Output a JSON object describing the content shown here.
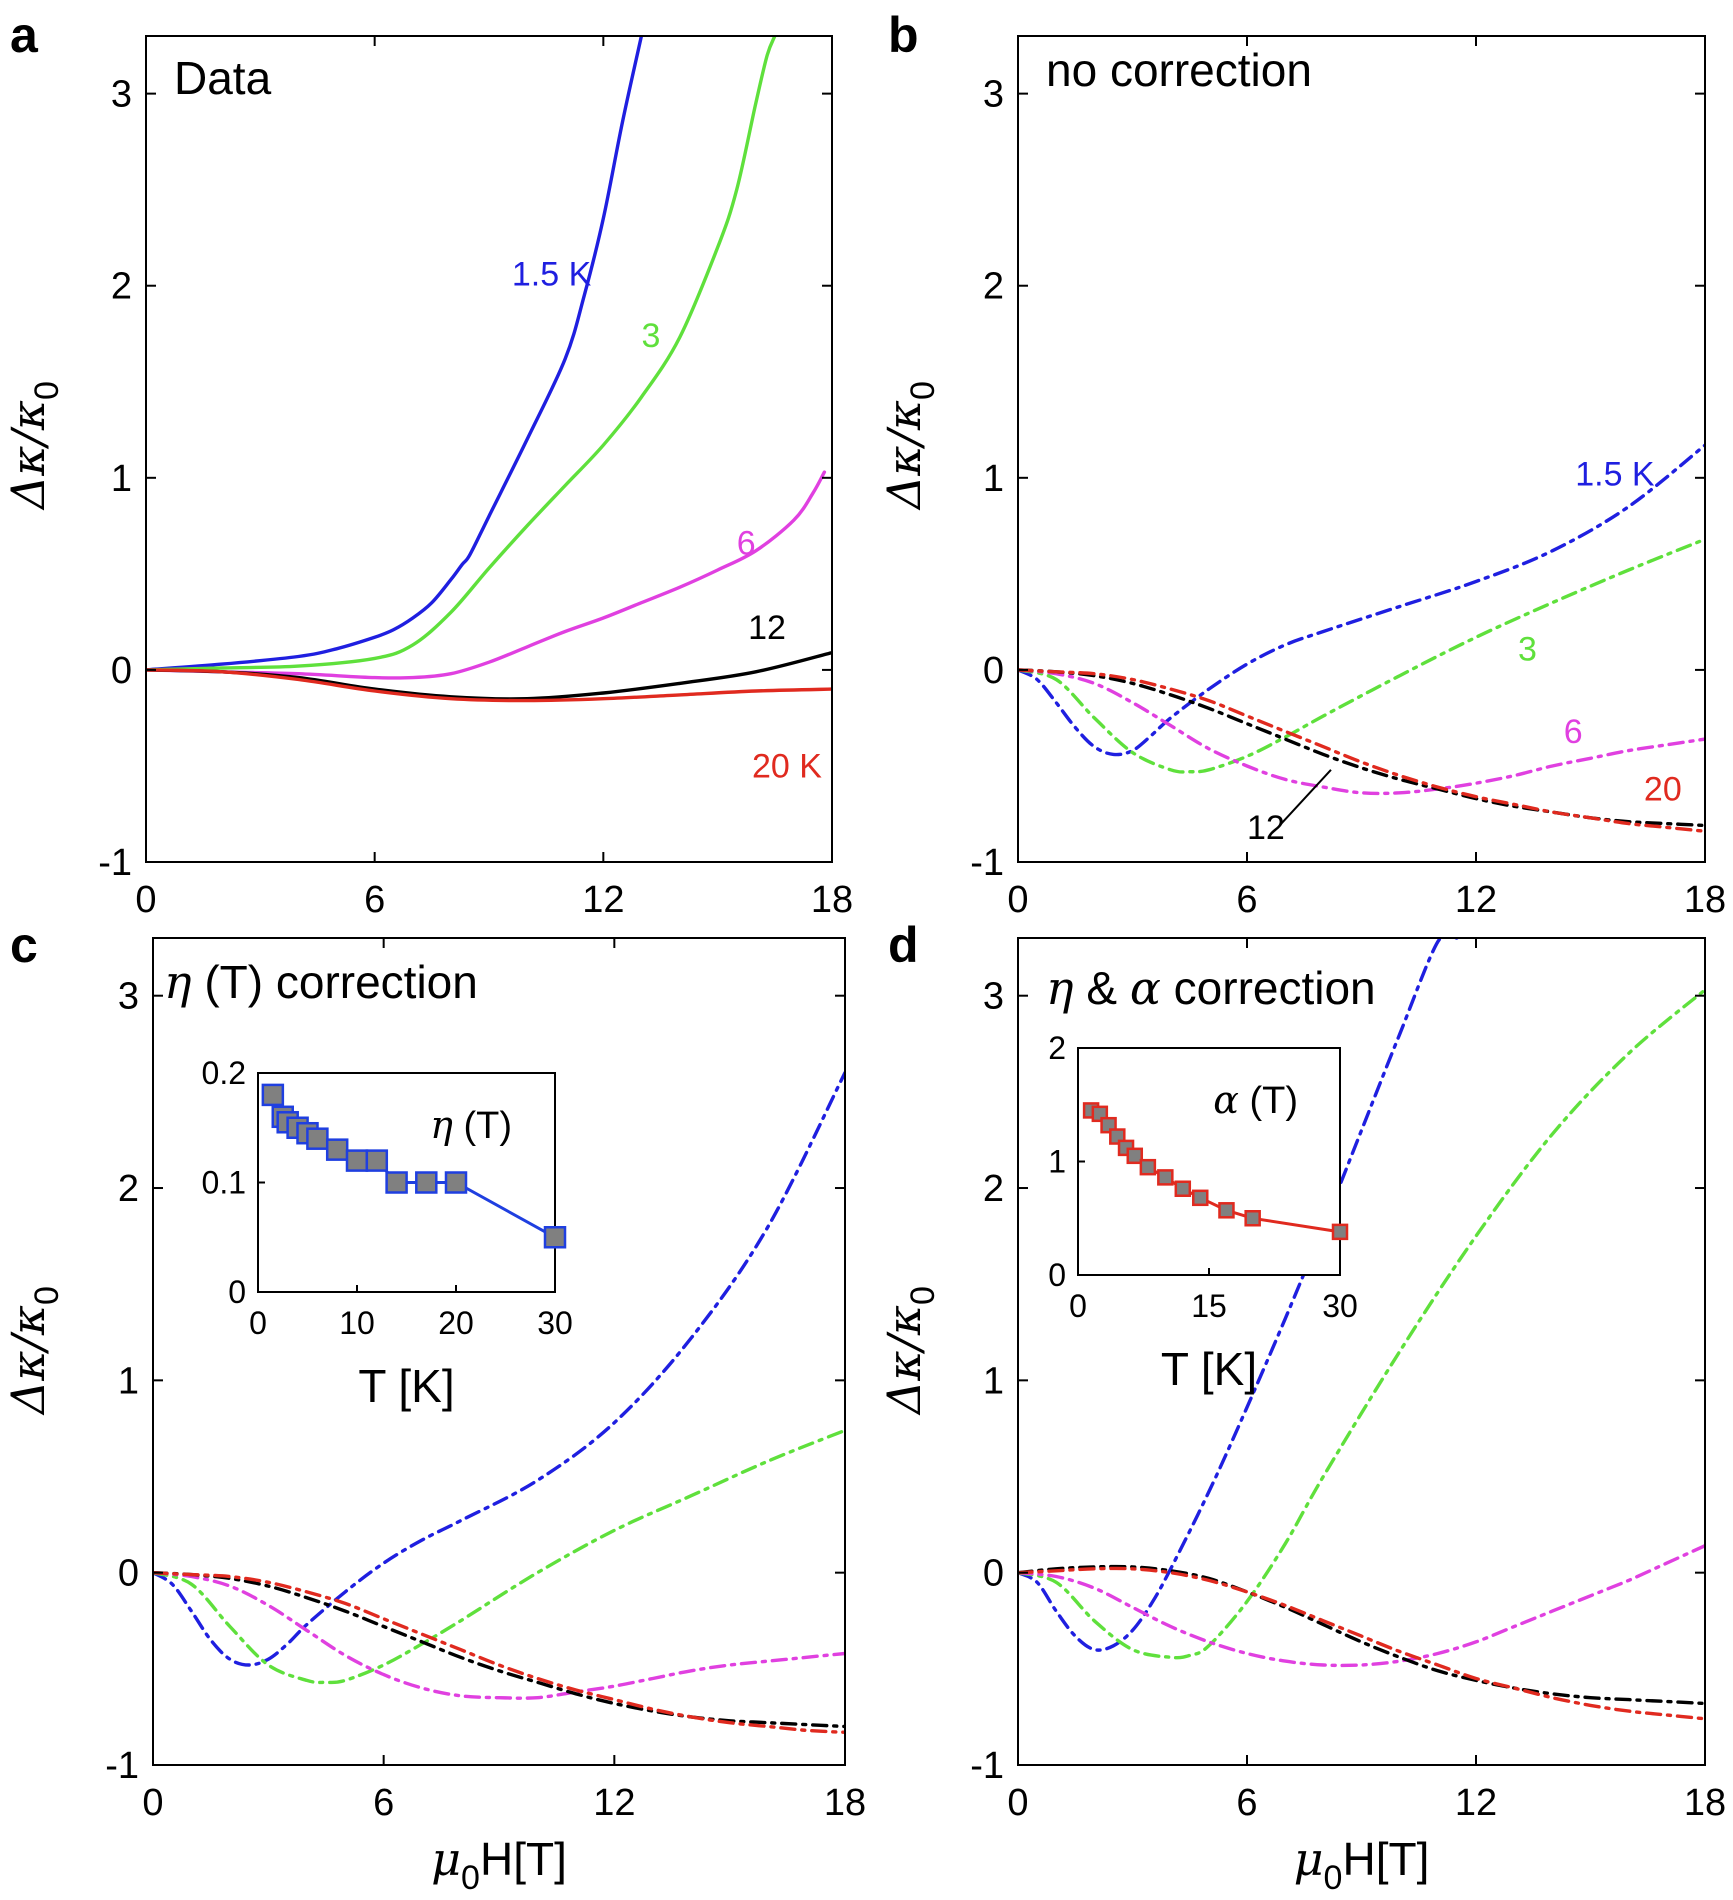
{
  "chart_data": [
    {
      "panel": "a",
      "type": "line",
      "title": "Data",
      "xlabel": "",
      "ylabel": "Δκ/κ0",
      "xlim": [
        0,
        18
      ],
      "ylim": [
        -1,
        3.3
      ],
      "xticks": [
        "0",
        "6",
        "12",
        "18"
      ],
      "yticks": [
        "-1",
        "0",
        "1",
        "2",
        "3"
      ],
      "linestyle": "solid",
      "series": [
        {
          "name": "1.5 K",
          "color": "#1f1fe0",
          "x": [
            0,
            2,
            4,
            5,
            6,
            6.5,
            7,
            7.5,
            8,
            8.3,
            8.5,
            9,
            10,
            11,
            11.5,
            12,
            12.5,
            13
          ],
          "y": [
            0,
            0.03,
            0.07,
            0.11,
            0.17,
            0.21,
            0.27,
            0.35,
            0.47,
            0.55,
            0.6,
            0.8,
            1.2,
            1.62,
            1.95,
            2.35,
            2.85,
            3.3
          ]
        },
        {
          "name": "3",
          "color": "#5fe03c",
          "x": [
            0,
            2,
            4,
            6,
            7,
            8,
            9,
            10,
            11,
            12,
            13,
            14,
            15,
            15.5,
            16,
            16.3,
            16.5
          ],
          "y": [
            0,
            0.01,
            0.02,
            0.06,
            0.13,
            0.3,
            0.53,
            0.75,
            0.96,
            1.17,
            1.42,
            1.73,
            2.2,
            2.5,
            2.95,
            3.2,
            3.3
          ]
        },
        {
          "name": "6",
          "color": "#e040e0",
          "x": [
            0,
            2,
            4,
            6,
            7,
            8,
            9,
            10,
            11,
            12,
            13,
            14,
            15,
            16,
            17,
            17.5,
            17.8
          ],
          "y": [
            0,
            -0.01,
            -0.02,
            -0.04,
            -0.04,
            -0.02,
            0.04,
            0.12,
            0.2,
            0.27,
            0.35,
            0.43,
            0.52,
            0.62,
            0.78,
            0.92,
            1.03
          ]
        },
        {
          "name": "12",
          "color": "#000000",
          "x": [
            0,
            2,
            4,
            6,
            8,
            10,
            12,
            14,
            16,
            18
          ],
          "y": [
            0,
            -0.01,
            -0.04,
            -0.1,
            -0.14,
            -0.15,
            -0.12,
            -0.07,
            -0.01,
            0.09
          ]
        },
        {
          "name": "20 K",
          "color": "#e02a1f",
          "x": [
            0,
            2,
            4,
            6,
            8,
            10,
            12,
            14,
            16,
            18
          ],
          "y": [
            0,
            -0.01,
            -0.05,
            -0.11,
            -0.15,
            -0.16,
            -0.15,
            -0.13,
            -0.11,
            -0.1
          ]
        }
      ],
      "annotations": [
        {
          "text": "1.5 K",
          "color": "#1f1fe0",
          "x": 9.6,
          "y": 2.0
        },
        {
          "text": "3",
          "color": "#5fe03c",
          "x": 13.0,
          "y": 1.68
        },
        {
          "text": "6",
          "color": "#e040e0",
          "x": 15.5,
          "y": 0.6
        },
        {
          "text": "12",
          "color": "#000000",
          "x": 15.8,
          "y": 0.16
        },
        {
          "text": "20 K",
          "color": "#e02a1f",
          "x": 15.9,
          "y": -0.56
        }
      ]
    },
    {
      "panel": "b",
      "type": "line",
      "title": "no correction",
      "xlabel": "",
      "ylabel": "Δκ/κ0",
      "xlim": [
        0,
        18
      ],
      "ylim": [
        -1,
        3.3
      ],
      "xticks": [
        "0",
        "6",
        "12",
        "18"
      ],
      "yticks": [
        "-1",
        "0",
        "1",
        "2",
        "3"
      ],
      "linestyle": "dashdot",
      "series": [
        {
          "name": "1.5 K",
          "color": "#1f1fe0",
          "x": [
            0,
            0.5,
            1,
            1.5,
            2,
            2.5,
            3,
            3.5,
            4,
            5,
            6,
            7,
            8,
            10,
            12,
            14,
            16,
            18
          ],
          "y": [
            0,
            -0.05,
            -0.17,
            -0.3,
            -0.4,
            -0.44,
            -0.42,
            -0.34,
            -0.25,
            -0.1,
            0.03,
            0.13,
            0.2,
            0.33,
            0.46,
            0.62,
            0.85,
            1.17
          ]
        },
        {
          "name": "3",
          "color": "#5fe03c",
          "x": [
            0,
            1,
            2,
            3,
            4,
            4.5,
            5,
            6,
            7,
            8,
            10,
            12,
            14,
            16,
            18
          ],
          "y": [
            0,
            -0.05,
            -0.25,
            -0.43,
            -0.52,
            -0.53,
            -0.52,
            -0.45,
            -0.35,
            -0.24,
            -0.03,
            0.17,
            0.35,
            0.52,
            0.68
          ]
        },
        {
          "name": "6",
          "color": "#e040e0",
          "x": [
            0,
            1,
            2,
            3,
            4,
            5,
            6,
            7,
            8,
            9,
            10,
            11,
            12,
            13,
            14,
            15,
            16,
            17,
            18
          ],
          "y": [
            0,
            -0.02,
            -0.07,
            -0.17,
            -0.29,
            -0.41,
            -0.5,
            -0.57,
            -0.61,
            -0.64,
            -0.64,
            -0.62,
            -0.59,
            -0.55,
            -0.5,
            -0.46,
            -0.42,
            -0.39,
            -0.36
          ]
        },
        {
          "name": "12",
          "color": "#000000",
          "x": [
            0,
            1,
            2,
            3,
            4,
            5,
            6,
            7,
            8,
            9,
            10,
            11,
            12,
            13,
            14,
            15,
            16,
            17,
            18
          ],
          "y": [
            0,
            -0.01,
            -0.03,
            -0.07,
            -0.13,
            -0.2,
            -0.28,
            -0.36,
            -0.44,
            -0.51,
            -0.57,
            -0.62,
            -0.67,
            -0.71,
            -0.74,
            -0.77,
            -0.79,
            -0.8,
            -0.81
          ]
        },
        {
          "name": "20",
          "color": "#e02a1f",
          "x": [
            0,
            1,
            2,
            3,
            4,
            5,
            6,
            7,
            8,
            9,
            10,
            11,
            12,
            13,
            14,
            15,
            16,
            17,
            18
          ],
          "y": [
            0,
            -0.01,
            -0.02,
            -0.05,
            -0.1,
            -0.16,
            -0.24,
            -0.32,
            -0.4,
            -0.48,
            -0.55,
            -0.61,
            -0.66,
            -0.7,
            -0.74,
            -0.77,
            -0.8,
            -0.82,
            -0.84
          ]
        }
      ],
      "annotations": [
        {
          "text": "1.5 K",
          "color": "#1f1fe0",
          "x": 14.6,
          "y": 0.96
        },
        {
          "text": "3",
          "color": "#5fe03c",
          "x": 13.1,
          "y": 0.05
        },
        {
          "text": "6",
          "color": "#e040e0",
          "x": 14.3,
          "y": -0.38
        },
        {
          "text": "20",
          "color": "#e02a1f",
          "x": 16.4,
          "y": -0.68
        },
        {
          "text": "12",
          "color": "#000000",
          "x": 6.0,
          "y": -0.88
        }
      ]
    },
    {
      "panel": "c",
      "type": "line",
      "title": "η (T) correction",
      "xlabel": "μ0H[T]",
      "ylabel": "Δκ/κ0",
      "xlim": [
        0,
        18
      ],
      "ylim": [
        -1,
        3.3
      ],
      "xticks": [
        "0",
        "6",
        "12",
        "18"
      ],
      "yticks": [
        "-1",
        "0",
        "1",
        "2",
        "3"
      ],
      "linestyle": "dashdot",
      "series": [
        {
          "name": "1.5 K",
          "color": "#1f1fe0",
          "x": [
            0,
            0.5,
            1,
            1.5,
            2,
            2.5,
            3,
            3.5,
            4,
            5,
            6,
            7,
            8,
            10,
            12,
            14,
            16,
            18
          ],
          "y": [
            0,
            -0.06,
            -0.2,
            -0.35,
            -0.45,
            -0.48,
            -0.45,
            -0.37,
            -0.27,
            -0.1,
            0.05,
            0.17,
            0.27,
            0.48,
            0.78,
            1.22,
            1.8,
            2.6
          ]
        },
        {
          "name": "3",
          "color": "#5fe03c",
          "x": [
            0,
            1,
            2,
            3,
            4,
            4.5,
            5,
            6,
            7,
            8,
            10,
            12,
            14,
            16,
            18
          ],
          "y": [
            0,
            -0.06,
            -0.28,
            -0.48,
            -0.56,
            -0.57,
            -0.56,
            -0.48,
            -0.37,
            -0.25,
            0,
            0.22,
            0.4,
            0.58,
            0.74
          ]
        },
        {
          "name": "6",
          "color": "#e040e0",
          "x": [
            0,
            1,
            2,
            3,
            4,
            5,
            6,
            7,
            8,
            9,
            10,
            11,
            12,
            13,
            14,
            15,
            16,
            17,
            18
          ],
          "y": [
            0,
            -0.02,
            -0.07,
            -0.17,
            -0.3,
            -0.43,
            -0.53,
            -0.6,
            -0.64,
            -0.65,
            -0.65,
            -0.62,
            -0.59,
            -0.55,
            -0.51,
            -0.48,
            -0.46,
            -0.44,
            -0.42
          ]
        },
        {
          "name": "12",
          "color": "#000000",
          "x": [
            0,
            1,
            2,
            3,
            4,
            5,
            6,
            7,
            8,
            9,
            10,
            11,
            12,
            13,
            14,
            15,
            16,
            17,
            18
          ],
          "y": [
            0,
            -0.01,
            -0.03,
            -0.07,
            -0.13,
            -0.2,
            -0.28,
            -0.36,
            -0.44,
            -0.51,
            -0.57,
            -0.63,
            -0.68,
            -0.72,
            -0.75,
            -0.77,
            -0.78,
            -0.79,
            -0.8
          ]
        },
        {
          "name": "20",
          "color": "#e02a1f",
          "x": [
            0,
            1,
            2,
            3,
            4,
            5,
            6,
            7,
            8,
            9,
            10,
            11,
            12,
            13,
            14,
            15,
            16,
            17,
            18
          ],
          "y": [
            0,
            -0.01,
            -0.02,
            -0.05,
            -0.1,
            -0.16,
            -0.24,
            -0.32,
            -0.4,
            -0.48,
            -0.55,
            -0.61,
            -0.66,
            -0.71,
            -0.75,
            -0.78,
            -0.8,
            -0.82,
            -0.83
          ]
        }
      ],
      "inset": {
        "type": "line",
        "title": "η (T)",
        "xlabel": "T [K]",
        "xlim": [
          0,
          30
        ],
        "ylim": [
          0,
          0.2
        ],
        "xticks": [
          "0",
          "10",
          "20",
          "30"
        ],
        "yticks": [
          "0",
          "0.1",
          "0.2"
        ],
        "color": "#1f3fe0",
        "marker_fill": "#808080",
        "x": [
          1.5,
          2.5,
          3,
          4,
          5,
          6,
          8,
          10,
          12,
          14,
          17,
          20,
          30
        ],
        "y": [
          0.18,
          0.16,
          0.155,
          0.15,
          0.145,
          0.14,
          0.13,
          0.12,
          0.12,
          0.1,
          0.1,
          0.1,
          0.05
        ]
      }
    },
    {
      "panel": "d",
      "type": "line",
      "title": "η & α correction",
      "xlabel": "μ0H[T]",
      "ylabel": "Δκ/κ0",
      "xlim": [
        0,
        18
      ],
      "ylim": [
        -1,
        3.3
      ],
      "xticks": [
        "0",
        "6",
        "12",
        "18"
      ],
      "yticks": [
        "-1",
        "0",
        "1",
        "2",
        "3"
      ],
      "linestyle": "dashdot",
      "series": [
        {
          "name": "1.5 K",
          "color": "#1f1fe0",
          "x": [
            0,
            0.5,
            1,
            1.5,
            2,
            2.5,
            3,
            3.5,
            4,
            5,
            6,
            7,
            8,
            9,
            10,
            11,
            11.5
          ],
          "y": [
            0,
            -0.05,
            -0.2,
            -0.33,
            -0.4,
            -0.38,
            -0.3,
            -0.16,
            0.02,
            0.42,
            0.86,
            1.32,
            1.8,
            2.3,
            2.8,
            3.28,
            3.3
          ]
        },
        {
          "name": "3",
          "color": "#5fe03c",
          "x": [
            0,
            1,
            2,
            3,
            4,
            4.5,
            5,
            6,
            7,
            8,
            10,
            12,
            14,
            16,
            18
          ],
          "y": [
            0,
            -0.05,
            -0.25,
            -0.4,
            -0.44,
            -0.43,
            -0.38,
            -0.15,
            0.15,
            0.5,
            1.15,
            1.75,
            2.28,
            2.7,
            3.03
          ]
        },
        {
          "name": "6",
          "color": "#e040e0",
          "x": [
            0,
            1,
            2,
            3,
            4,
            5,
            6,
            7,
            8,
            9,
            10,
            11,
            12,
            13,
            14,
            15,
            16,
            17,
            18
          ],
          "y": [
            0,
            -0.02,
            -0.08,
            -0.18,
            -0.28,
            -0.36,
            -0.42,
            -0.46,
            -0.48,
            -0.48,
            -0.46,
            -0.42,
            -0.36,
            -0.28,
            -0.2,
            -0.12,
            -0.04,
            0.05,
            0.14
          ]
        },
        {
          "name": "12",
          "color": "#000000",
          "x": [
            0,
            1,
            2,
            3,
            4,
            5,
            6,
            7,
            8,
            9,
            10,
            11,
            12,
            13,
            14,
            15,
            16,
            17,
            18
          ],
          "y": [
            0,
            0.02,
            0.03,
            0.03,
            0.01,
            -0.03,
            -0.1,
            -0.18,
            -0.27,
            -0.36,
            -0.44,
            -0.51,
            -0.56,
            -0.6,
            -0.63,
            -0.65,
            -0.66,
            -0.67,
            -0.68
          ]
        },
        {
          "name": "20",
          "color": "#e02a1f",
          "x": [
            0,
            1,
            2,
            3,
            4,
            5,
            6,
            7,
            8,
            9,
            10,
            11,
            12,
            13,
            14,
            15,
            16,
            17,
            18
          ],
          "y": [
            0,
            0.01,
            0.02,
            0.02,
            0,
            -0.04,
            -0.1,
            -0.17,
            -0.25,
            -0.33,
            -0.41,
            -0.48,
            -0.55,
            -0.6,
            -0.65,
            -0.69,
            -0.72,
            -0.74,
            -0.76
          ]
        }
      ],
      "inset": {
        "type": "line",
        "title": "α (T)",
        "xlabel": "T [K]",
        "xlim": [
          0,
          30
        ],
        "ylim": [
          0,
          2
        ],
        "xticks": [
          "0",
          "15",
          "30"
        ],
        "yticks": [
          "0",
          "1",
          "2"
        ],
        "color": "#e02a1f",
        "marker_fill": "#808080",
        "x": [
          1.5,
          2.5,
          3.5,
          4.5,
          5.5,
          6.5,
          8,
          10,
          12,
          14,
          17,
          20,
          30
        ],
        "y": [
          1.45,
          1.42,
          1.32,
          1.22,
          1.12,
          1.05,
          0.95,
          0.86,
          0.76,
          0.68,
          0.57,
          0.5,
          0.38
        ]
      }
    }
  ]
}
